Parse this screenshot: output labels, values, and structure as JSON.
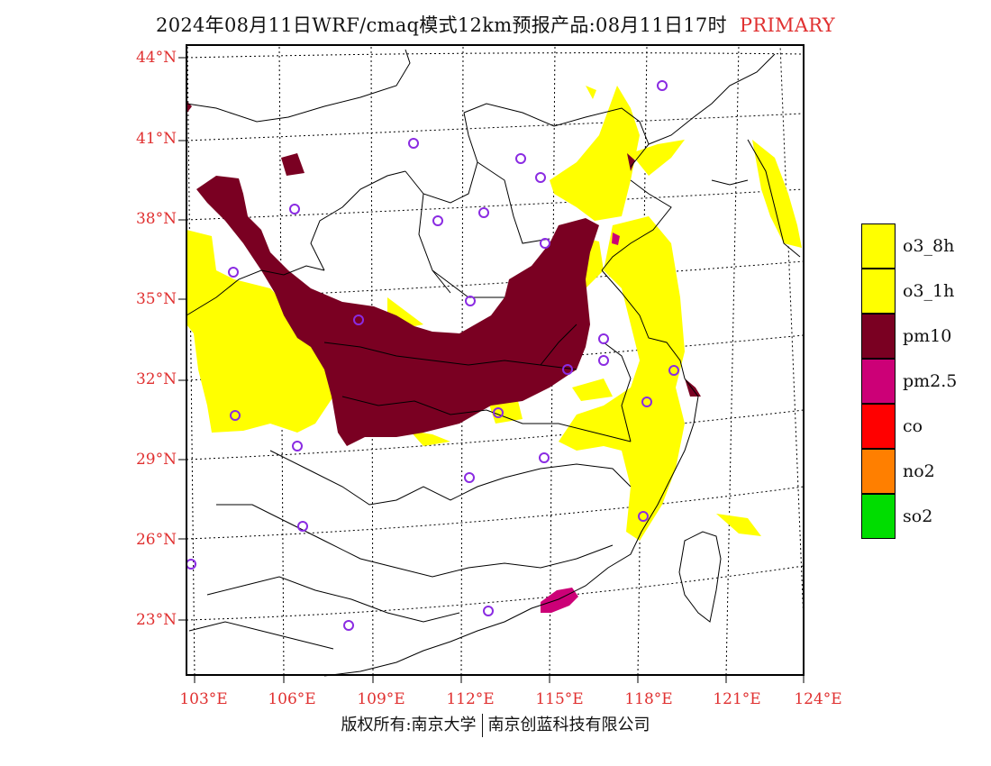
{
  "title": {
    "main": "2024年08月11日WRF/cmaq模式12km预报产品:08月11日17时",
    "tag": "PRIMARY",
    "tag_color": "#e03030"
  },
  "map": {
    "lat_labels": [
      "44°N",
      "41°N",
      "38°N",
      "35°N",
      "32°N",
      "29°N",
      "26°N",
      "23°N"
    ],
    "lon_labels": [
      "103°E",
      "106°E",
      "109°E",
      "112°E",
      "115°E",
      "118°E",
      "121°E",
      "124°E"
    ],
    "lon_range": [
      103,
      124
    ],
    "lat_range": [
      21,
      44
    ]
  },
  "legend": {
    "items": [
      {
        "label": "o3_8h",
        "color": "#ffff00"
      },
      {
        "label": "o3_1h",
        "color": "#ffff00"
      },
      {
        "label": "pm10",
        "color": "#7a0022"
      },
      {
        "label": "pm2.5",
        "color": "#cc0077"
      },
      {
        "label": "co",
        "color": "#ff0000"
      },
      {
        "label": "no2",
        "color": "#ff7f00"
      },
      {
        "label": "so2",
        "color": "#00dd00"
      }
    ]
  },
  "footer": {
    "left": "版权所有:南京大学",
    "right": "南京创蓝科技有限公司"
  },
  "colors": {
    "o3": "#ffff00",
    "pm10": "#7a0022",
    "pm25": "#cc0077",
    "station": "#8a2be2",
    "label": "#e03030"
  }
}
